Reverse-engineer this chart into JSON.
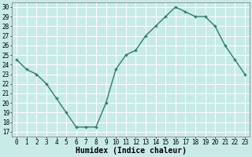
{
  "x": [
    0,
    1,
    2,
    3,
    4,
    5,
    6,
    7,
    8,
    9,
    10,
    11,
    12,
    13,
    14,
    15,
    16,
    17,
    18,
    19,
    20,
    21,
    22,
    23
  ],
  "y": [
    24.5,
    23.5,
    23.0,
    22.0,
    20.5,
    19.0,
    17.5,
    17.5,
    17.5,
    20.0,
    23.5,
    25.0,
    25.5,
    27.0,
    28.0,
    29.0,
    30.0,
    29.5,
    29.0,
    29.0,
    28.0,
    26.0,
    24.5,
    23.0
  ],
  "line_color": "#2e7d6e",
  "marker": "+",
  "marker_size": 3,
  "linewidth": 1.0,
  "bg_color": "#c8ebe8",
  "grid_color": "#ffffff",
  "xlabel": "Humidex (Indice chaleur)",
  "xlabel_fontsize": 7,
  "xtick_labels": [
    "0",
    "1",
    "2",
    "3",
    "4",
    "5",
    "6",
    "7",
    "8",
    "9",
    "10",
    "11",
    "12",
    "13",
    "14",
    "15",
    "16",
    "17",
    "18",
    "19",
    "20",
    "21",
    "22",
    "23"
  ],
  "ytick_min": 17,
  "ytick_max": 30,
  "ytick_step": 1,
  "xlim": [
    -0.5,
    23.5
  ],
  "ylim": [
    16.5,
    30.5
  ],
  "tick_fontsize": 5.5,
  "spine_color": "#888888"
}
